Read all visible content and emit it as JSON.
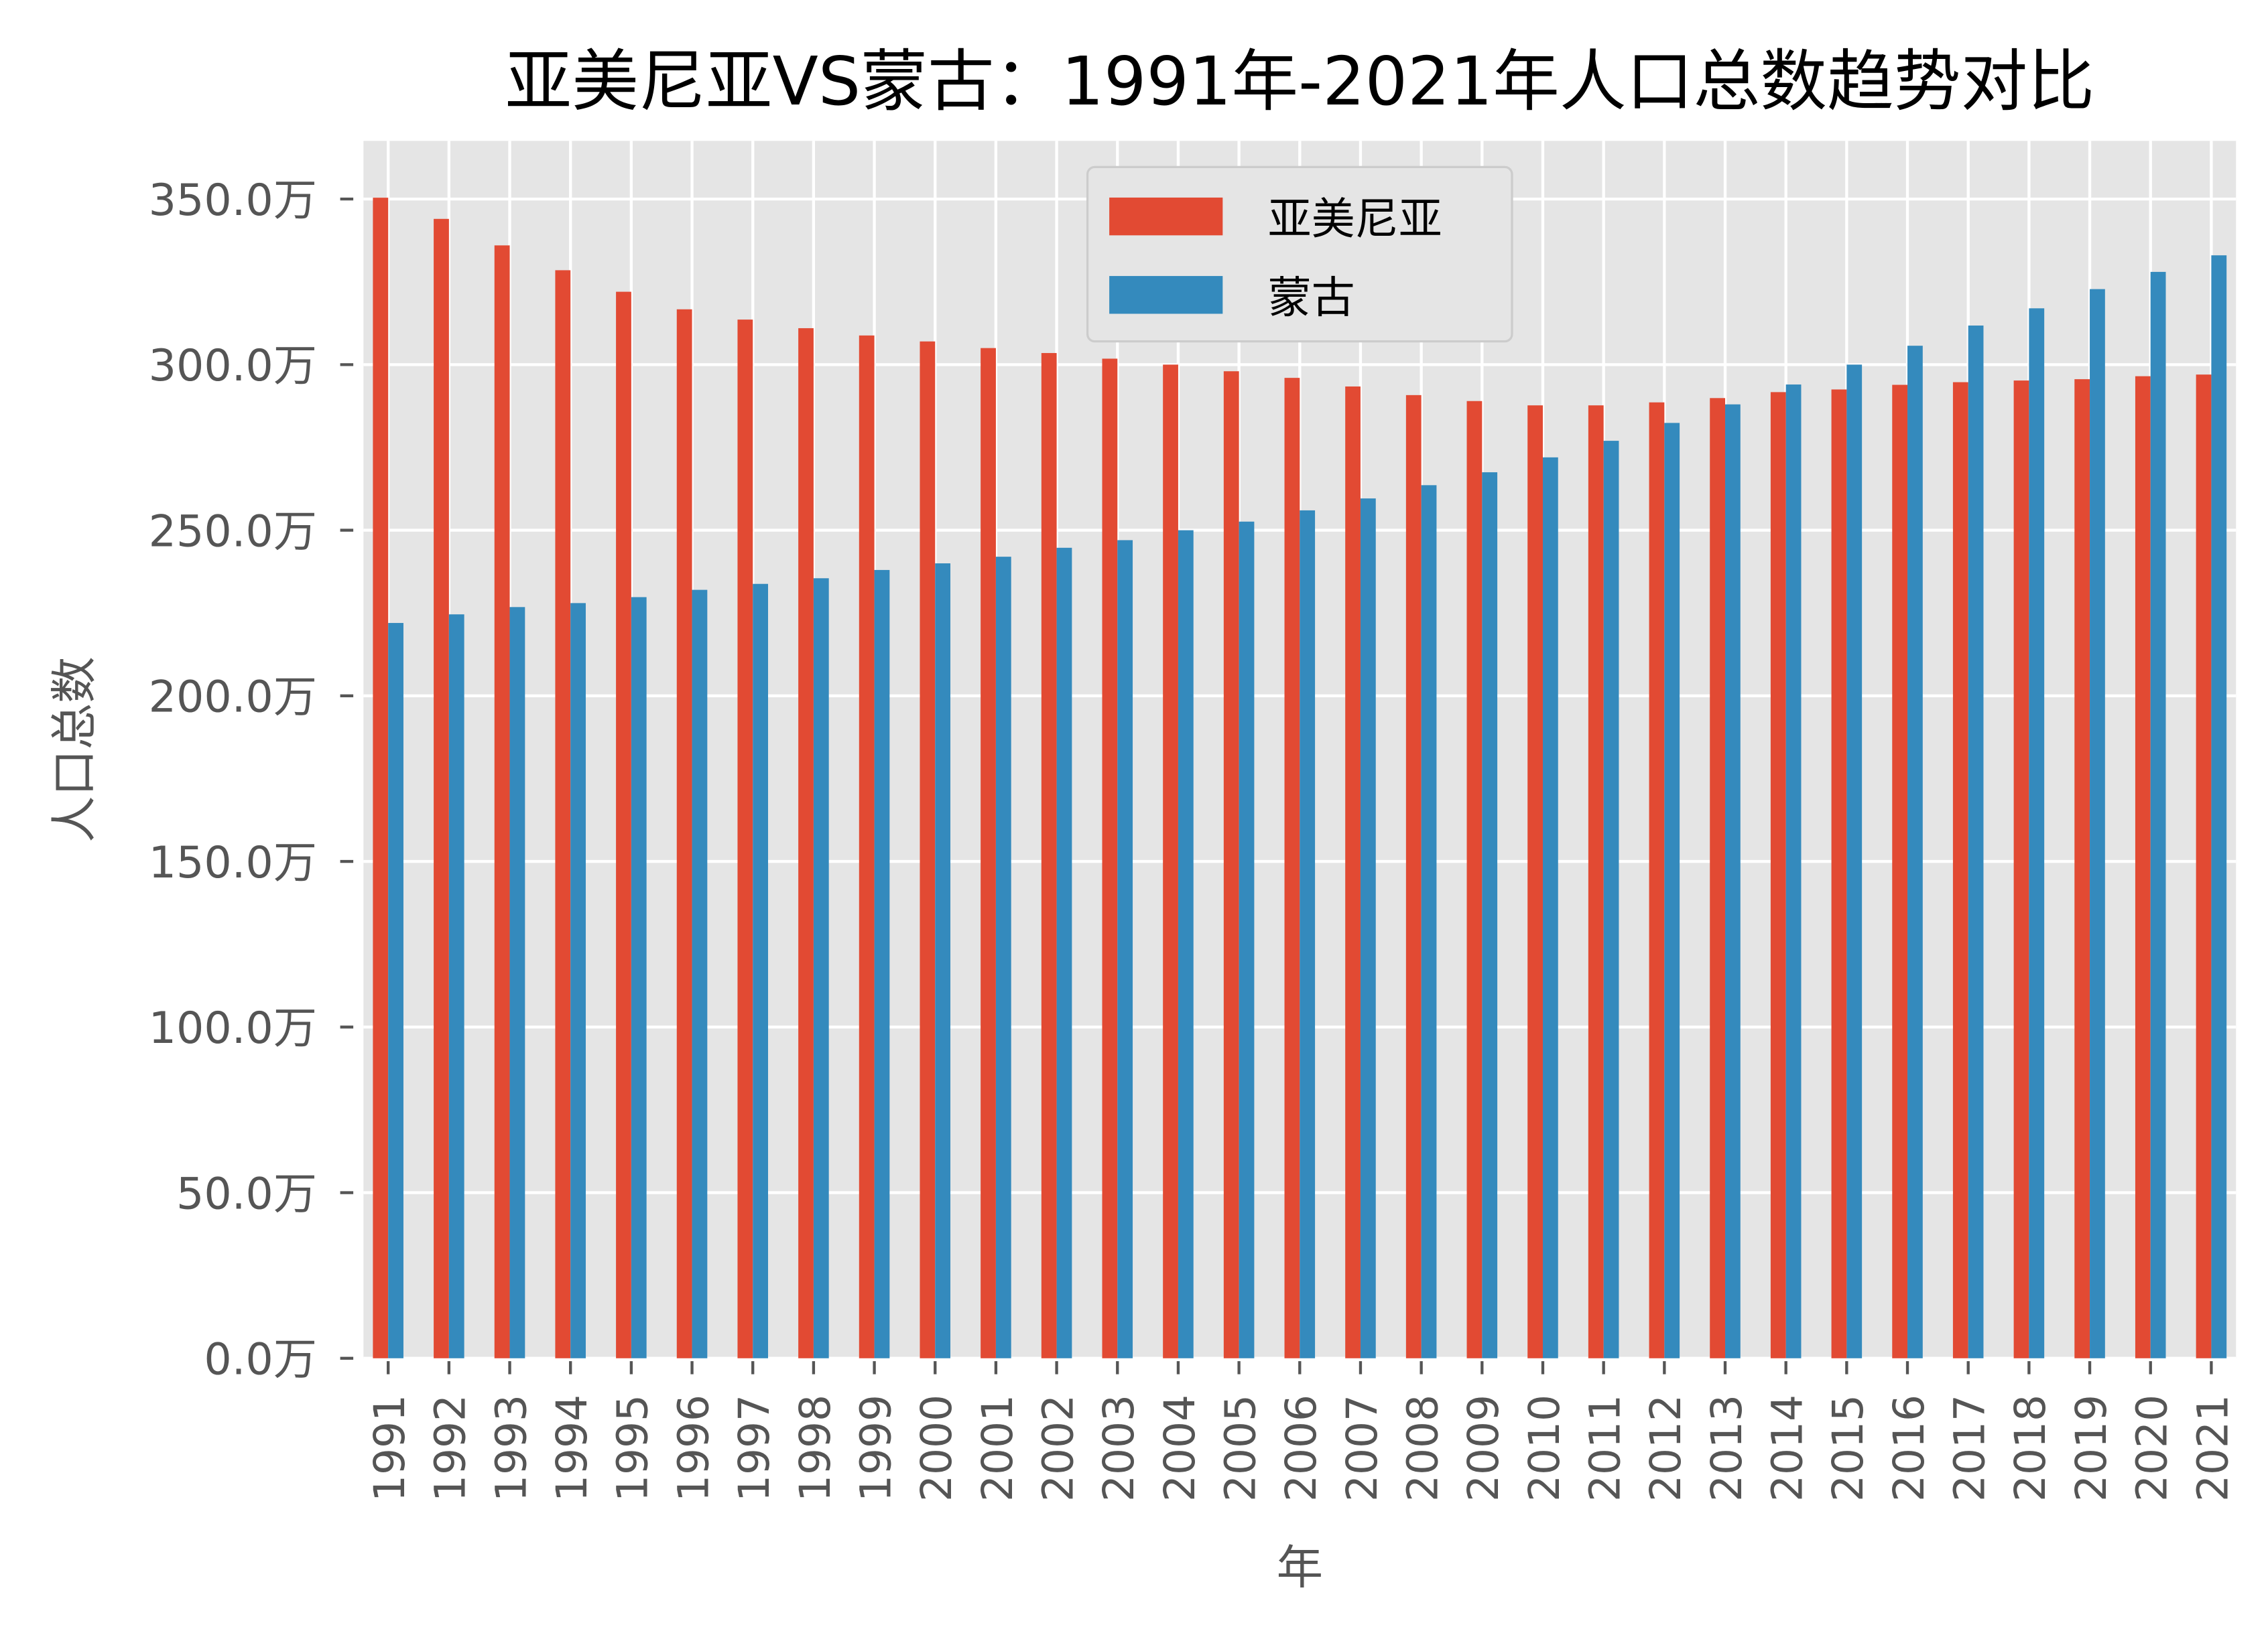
{
  "chart_data": {
    "type": "bar",
    "title": "亚美尼亚VS蒙古：1991年-2021年人口总数趋势对比",
    "xlabel": "年",
    "ylabel": "人口总数",
    "ylim": [
      0,
      367
    ],
    "yticks": [
      "0.0万",
      "50.0万",
      "100.0万",
      "150.0万",
      "200.0万",
      "250.0万",
      "300.0万",
      "350.0万"
    ],
    "ytick_values": [
      0,
      50,
      100,
      150,
      200,
      250,
      300,
      350
    ],
    "grid": true,
    "legend_position": "top-center",
    "categories": [
      "1991",
      "1992",
      "1993",
      "1994",
      "1995",
      "1996",
      "1997",
      "1998",
      "1999",
      "2000",
      "2001",
      "2002",
      "2003",
      "2004",
      "2005",
      "2006",
      "2007",
      "2008",
      "2009",
      "2010",
      "2011",
      "2012",
      "2013",
      "2014",
      "2015",
      "2016",
      "2017",
      "2018",
      "2019",
      "2020",
      "2021"
    ],
    "series": [
      {
        "name": "亚美尼亚",
        "color": "#E24A33",
        "values": [
          350.4,
          344.0,
          336.0,
          328.5,
          322.0,
          316.7,
          313.6,
          311.0,
          308.8,
          307.0,
          305.0,
          303.5,
          301.8,
          300.0,
          298.0,
          296.0,
          293.4,
          290.8,
          289.0,
          287.7,
          287.7,
          288.6,
          289.9,
          291.7,
          292.5,
          293.9,
          294.7,
          295.2,
          295.6,
          296.5,
          297.0
        ]
      },
      {
        "name": "蒙古",
        "color": "#348ABD",
        "values": [
          222.0,
          224.6,
          226.8,
          228.0,
          229.8,
          232.0,
          233.8,
          235.5,
          238.0,
          240.0,
          242.0,
          244.7,
          247.0,
          250.0,
          252.6,
          256.0,
          259.6,
          263.6,
          267.5,
          272.0,
          277.0,
          282.4,
          288.0,
          294.0,
          300.0,
          305.7,
          311.8,
          317.0,
          322.8,
          328.0,
          333.0
        ]
      }
    ]
  }
}
